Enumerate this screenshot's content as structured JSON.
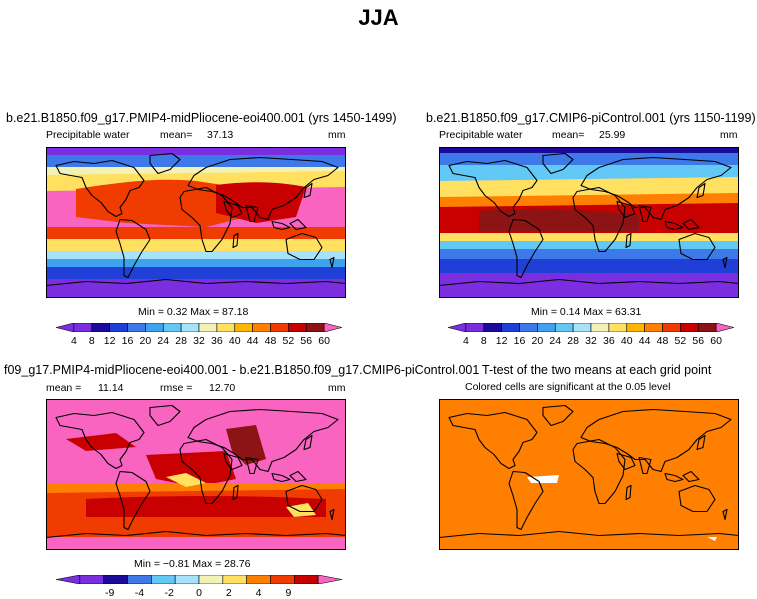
{
  "title": "JJA",
  "panels": {
    "tl": {
      "title": "b.e21.B1850.f09_g17.PMIP4-midPliocene-eoi400.001 (yrs 1450-1499)",
      "variable": "Precipitable water",
      "mean_label": "mean=",
      "mean": "37.13",
      "units": "mm",
      "stats": "Min =    0.32  Max =    87.18",
      "colorbar_labels": [
        "4",
        "8",
        "12",
        "16",
        "20",
        "24",
        "28",
        "32",
        "36",
        "40",
        "44",
        "48",
        "52",
        "56",
        "60"
      ]
    },
    "tr": {
      "title": "b.e21.B1850.f09_g17.CMIP6-piControl.001 (yrs 1150-1199)",
      "variable": "Precipitable water",
      "mean_label": "mean=",
      "mean": "25.99",
      "units": "mm",
      "stats": "Min =    0.14  Max =    63.31",
      "colorbar_labels": [
        "4",
        "8",
        "12",
        "16",
        "20",
        "24",
        "28",
        "32",
        "36",
        "40",
        "44",
        "48",
        "52",
        "56",
        "60"
      ]
    },
    "bl": {
      "title": "f09_g17.PMIP4-midPliocene-eoi400.001 - b.e21.B1850.f09_g17.CMIP6-piControl.001",
      "mean_label": "mean =",
      "mean": "11.14",
      "rmse_label": "rmse =",
      "rmse": "12.70",
      "units": "mm",
      "stats": "Min =   −0.81  Max =   28.76",
      "colorbar_labels": [
        "-9",
        "-4",
        "-2",
        "0",
        "2",
        "4",
        "9"
      ]
    },
    "br": {
      "title": "T-test of the two means at each grid point",
      "subtitle": "Colored cells are significant at the 0.05 level"
    }
  },
  "colors": {
    "abs_scale": [
      "#7a2ee0",
      "#1c0a9a",
      "#1f3fd6",
      "#3d79e8",
      "#3fa2ef",
      "#62c8f5",
      "#a6e3fb",
      "#f2f2b6",
      "#ffe060",
      "#ffb400",
      "#ff7f00",
      "#f03c00",
      "#c80000",
      "#8c1414",
      "#f864c0"
    ],
    "diff_scale": [
      "#7a2ee0",
      "#1c0a9a",
      "#3d79e8",
      "#62c8f5",
      "#a6e3fb",
      "#f2f2b6",
      "#ffe060",
      "#ff7f00",
      "#f03c00",
      "#c80000",
      "#f864c0"
    ],
    "ttest_fill": "#ff7f00"
  }
}
